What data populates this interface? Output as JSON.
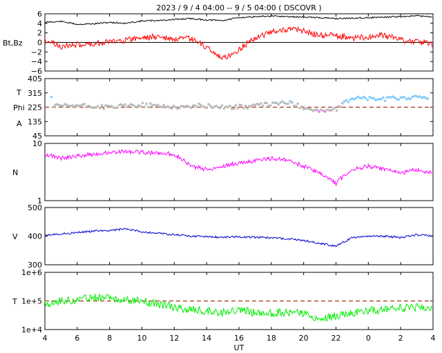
{
  "title": "2023 / 9 / 4 04:00 -- 9 / 5 04:00 ( DSCOVR )",
  "x_axis": {
    "label": "UT",
    "ticks": [
      "4",
      "6",
      "8",
      "10",
      "12",
      "14",
      "16",
      "18",
      "20",
      "22",
      "0",
      "2",
      "4"
    ],
    "range_hours": [
      4,
      28
    ]
  },
  "colors": {
    "bt": "#000000",
    "bz": "#ff0000",
    "phi_away": "#87cefa",
    "phi_toward": "#ff66ff",
    "phi_other": "#bbbbbb",
    "density": "#ff00ff",
    "speed": "#0000cc",
    "temperature": "#00ee00",
    "reference_line": "#b05030"
  },
  "chart_data": [
    {
      "type": "line",
      "ylabel": "Bt,Bz",
      "ylim": [
        -6,
        6
      ],
      "yticks": [
        "6",
        "4",
        "2",
        "0",
        "−2",
        "−4",
        "−6"
      ],
      "grid": false,
      "series": [
        {
          "x": [
            4,
            5,
            6,
            7,
            8,
            9,
            10,
            11,
            12,
            13,
            14,
            15,
            16,
            17,
            18,
            19,
            20,
            21,
            22,
            23,
            24,
            25,
            26,
            27,
            28
          ],
          "values": [
            4.2,
            4.4,
            3.8,
            3.9,
            4.2,
            4.0,
            4.5,
            4.6,
            4.8,
            5.0,
            4.7,
            4.6,
            5.2,
            5.4,
            5.5,
            5.4,
            5.3,
            5.2,
            5.0,
            5.1,
            5.2,
            5.3,
            5.4,
            5.6,
            5.3
          ]
        },
        {
          "x": [
            4,
            5,
            6,
            7,
            8,
            9,
            10,
            11,
            12,
            13,
            14,
            15,
            16,
            17,
            18,
            19,
            20,
            21,
            22,
            23,
            24,
            25,
            26,
            27,
            28
          ],
          "values": [
            0.5,
            -0.8,
            -0.5,
            -0.3,
            0.2,
            0.5,
            1.0,
            1.2,
            0.5,
            0.8,
            -1.0,
            -3.5,
            -1.5,
            1.0,
            2.2,
            2.8,
            2.4,
            1.4,
            1.5,
            0.8,
            1.2,
            1.5,
            0.5,
            0.2,
            -0.5
          ]
        }
      ]
    },
    {
      "type": "scatter",
      "ylabel": "T / Phi / A",
      "ylim": [
        45,
        405
      ],
      "yticks": [
        "405",
        "315",
        "225",
        "135",
        "45"
      ],
      "reference_line": 225,
      "series": [
        {
          "x": [
            4.5,
            6.0,
            8.0,
            10.0,
            11.5,
            12.5,
            13.5,
            15.5,
            16.5,
            18.0,
            19.0,
            20.0,
            21.0,
            22.0,
            23.0,
            24.0,
            25.0,
            26.0,
            27.0,
            27.8
          ],
          "values": [
            230,
            235,
            225,
            240,
            230,
            225,
            235,
            225,
            230,
            245,
            255,
            225,
            200,
            210,
            285,
            280,
            275,
            285,
            285,
            290
          ]
        }
      ]
    },
    {
      "type": "line",
      "ylabel": "N",
      "ylim": [
        1,
        10
      ],
      "yscale": "log",
      "yticks": [
        "10",
        "1"
      ],
      "series": [
        {
          "x": [
            4,
            5,
            6,
            7,
            8,
            9,
            10,
            11,
            12,
            13,
            14,
            15,
            16,
            17,
            18,
            19,
            20,
            21,
            22,
            23,
            24,
            25,
            26,
            27,
            28
          ],
          "values": [
            6.5,
            5.5,
            6.0,
            6.5,
            7.0,
            7.2,
            7.0,
            6.8,
            6.5,
            4.0,
            3.5,
            4.0,
            4.5,
            5.0,
            5.5,
            5.0,
            4.0,
            3.0,
            2.0,
            3.5,
            4.0,
            3.5,
            3.0,
            3.5,
            3.0
          ]
        }
      ]
    },
    {
      "type": "line",
      "ylabel": "V",
      "ylim": [
        300,
        500
      ],
      "yticks": [
        "500",
        "400",
        "300"
      ],
      "series": [
        {
          "x": [
            4,
            5,
            6,
            7,
            8,
            9,
            10,
            11,
            12,
            13,
            14,
            15,
            16,
            17,
            18,
            19,
            20,
            21,
            22,
            23,
            24,
            25,
            26,
            27,
            28
          ],
          "values": [
            405,
            408,
            412,
            418,
            420,
            425,
            415,
            410,
            405,
            400,
            398,
            396,
            398,
            396,
            394,
            390,
            385,
            375,
            365,
            395,
            400,
            400,
            395,
            405,
            400
          ]
        }
      ]
    },
    {
      "type": "line",
      "ylabel": "T",
      "yscale": "log",
      "ylim": [
        10000,
        1000000
      ],
      "yticks": [
        "1e+6",
        "1e+5",
        "1e+4"
      ],
      "reference_line": 100000,
      "series": [
        {
          "x": [
            4,
            5,
            6,
            7,
            8,
            9,
            10,
            11,
            12,
            13,
            14,
            15,
            16,
            17,
            18,
            19,
            20,
            21,
            22,
            23,
            24,
            25,
            26,
            27,
            28
          ],
          "values": [
            80000,
            100000,
            110000,
            130000,
            130000,
            110000,
            100000,
            80000,
            60000,
            50000,
            45000,
            40000,
            45000,
            40000,
            38000,
            40000,
            35000,
            25000,
            30000,
            40000,
            45000,
            50000,
            55000,
            60000,
            55000
          ]
        }
      ]
    }
  ]
}
